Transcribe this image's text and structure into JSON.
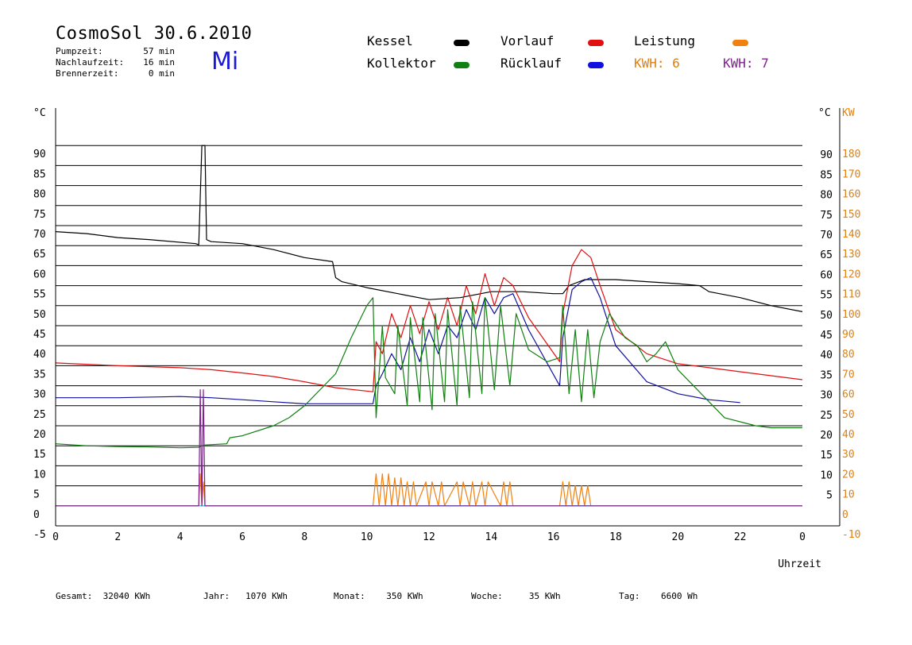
{
  "header": {
    "title": "CosmoSol 30.6.2010",
    "day": "Mi",
    "stats": [
      {
        "label": "Pumpzeit:",
        "value": "57 min"
      },
      {
        "label": "Nachlaufzeit:",
        "value": "16 min"
      },
      {
        "label": "Brennerzeit:",
        "value": "0 min"
      }
    ]
  },
  "legend": {
    "items": [
      {
        "label": "Kessel",
        "color": "#000000"
      },
      {
        "label": "Vorlauf",
        "color": "#e01010"
      },
      {
        "label": "Leistung",
        "color": "#f08010"
      },
      {
        "label": "Kollektor",
        "color": "#108010"
      },
      {
        "label": "Rücklauf",
        "color": "#1010e0"
      }
    ],
    "kwh": [
      {
        "label": "KWH: 6",
        "color": "#e08010"
      },
      {
        "label": "KWH: 7",
        "color": "#802090"
      }
    ]
  },
  "footer": [
    {
      "label": "Gesamt:",
      "value": "32040 KWh"
    },
    {
      "label": "Jahr:",
      "value": "1070 KWh"
    },
    {
      "label": "Monat:",
      "value": "350 KWh"
    },
    {
      "label": "Woche:",
      "value": "35 KWh"
    },
    {
      "label": "Tag:",
      "value": "6600 Wh"
    }
  ],
  "chart_data": {
    "type": "line",
    "x_unit_label": "Uhrzeit",
    "x_ticks": [
      "0",
      "2",
      "4",
      "6",
      "8",
      "10",
      "12",
      "14",
      "16",
      "18",
      "20",
      "22",
      "0"
    ],
    "xlim": [
      0,
      24
    ],
    "y_left_unit": "°C",
    "y_left_ticks": [
      "90",
      "85",
      "80",
      "75",
      "70",
      "65",
      "60",
      "55",
      "50",
      "45",
      "40",
      "35",
      "30",
      "25",
      "20",
      "15",
      "10",
      "5",
      "0",
      "-5"
    ],
    "y_right_unit": "°C",
    "y_right_ticks": [
      "90",
      "85",
      "80",
      "75",
      "70",
      "65",
      "60",
      "55",
      "50",
      "45",
      "40",
      "35",
      "30",
      "25",
      "20",
      "15",
      "10",
      "5"
    ],
    "y2_unit": "KW",
    "y2_ticks": [
      "180",
      "170",
      "160",
      "150",
      "140",
      "130",
      "120",
      "110",
      "100",
      "90",
      "80",
      "70",
      "60",
      "50",
      "40",
      "30",
      "20",
      "10",
      "0",
      "-10"
    ],
    "ylim": [
      -5,
      95
    ],
    "y2lim": [
      -10,
      190
    ],
    "grid": true,
    "series": [
      {
        "name": "Kessel",
        "color": "#000000",
        "x": [
          0,
          1,
          2,
          3,
          4.5,
          4.6,
          4.7,
          4.75,
          4.8,
          4.85,
          4.9,
          5,
          6,
          7,
          8,
          8.9,
          9.0,
          9.2,
          10,
          11,
          12,
          13,
          14,
          15,
          16,
          16.3,
          16.5,
          17,
          18,
          19,
          20,
          20.7,
          21,
          22,
          23,
          24
        ],
        "y": [
          68.5,
          68,
          67,
          66.5,
          65.5,
          65.2,
          90,
          90,
          90,
          66.5,
          66.3,
          66,
          65.5,
          64,
          62,
          61,
          57,
          56,
          54.5,
          53,
          51.5,
          52,
          53.5,
          53.5,
          53,
          53,
          55,
          56.5,
          56.5,
          56,
          55.5,
          55,
          53.5,
          52,
          50,
          48.5
        ]
      },
      {
        "name": "Vorlauf",
        "color": "#e01010",
        "x": [
          0,
          2,
          4,
          5,
          6,
          7,
          8,
          9,
          10.2,
          10.3,
          10.5,
          10.8,
          11.1,
          11.4,
          11.7,
          12,
          12.3,
          12.6,
          12.9,
          13.2,
          13.5,
          13.8,
          14.1,
          14.4,
          14.7,
          15.2,
          16.2,
          16.3,
          16.6,
          16.9,
          17.2,
          17.5,
          18,
          19,
          20,
          21,
          22,
          23,
          24
        ],
        "y": [
          35.7,
          35,
          34.5,
          34,
          33.2,
          32.3,
          31,
          29.5,
          28.5,
          41,
          38,
          48,
          42,
          50,
          43,
          51,
          44,
          52,
          45,
          55,
          48,
          58,
          50,
          57,
          55,
          47,
          36,
          48,
          60,
          64,
          62,
          55,
          44,
          38,
          35.5,
          34.5,
          33.5,
          32.5,
          31.5
        ]
      },
      {
        "name": "Rücklauf",
        "color": "#1010a0",
        "x": [
          0,
          2,
          4,
          5,
          6,
          7,
          8,
          9,
          10.2,
          10.3,
          10.5,
          10.8,
          11.1,
          11.4,
          11.7,
          12,
          12.3,
          12.6,
          12.9,
          13.2,
          13.5,
          13.8,
          14.1,
          14.4,
          14.7,
          15.2,
          16.2,
          16.3,
          16.6,
          16.9,
          17.2,
          17.5,
          18,
          19,
          20,
          21,
          22
        ],
        "y": [
          27,
          27,
          27.3,
          27,
          26.5,
          26,
          25.5,
          25.5,
          25.5,
          30,
          33,
          38,
          34,
          42,
          36,
          44,
          38,
          45,
          42,
          49,
          44,
          52,
          48,
          52,
          53,
          44,
          30,
          42,
          54,
          56,
          57,
          52,
          40,
          31,
          28,
          26.5,
          25.8
        ]
      },
      {
        "name": "Kollektor",
        "color": "#108010",
        "x": [
          0,
          1,
          2,
          3,
          4,
          4.6,
          4.7,
          4.8,
          5.5,
          5.6,
          6,
          7,
          7.5,
          8,
          9,
          9.5,
          10,
          10.2,
          10.3,
          10.5,
          10.6,
          10.9,
          11.0,
          11.3,
          11.4,
          11.7,
          11.8,
          12.1,
          12.2,
          12.5,
          12.6,
          12.9,
          13.0,
          13.3,
          13.4,
          13.7,
          13.8,
          14.1,
          14.3,
          14.6,
          14.8,
          15.2,
          15.8,
          16.2,
          16.3,
          16.5,
          16.7,
          16.9,
          17.1,
          17.3,
          17.5,
          17.8,
          18.3,
          18.7,
          19.0,
          19.3,
          19.6,
          20.0,
          20.5,
          21,
          21.5,
          22,
          22.5,
          23,
          24
        ],
        "y": [
          15.5,
          15,
          14.8,
          14.7,
          14.5,
          14.6,
          15,
          15.2,
          15.5,
          17,
          17.5,
          20,
          22,
          25,
          33,
          42,
          50,
          52,
          22,
          45,
          32,
          28,
          45,
          25,
          47,
          26,
          47,
          24,
          48,
          26,
          49,
          25,
          50,
          27,
          51,
          28,
          52,
          29,
          50,
          30,
          48,
          39,
          36,
          37,
          50,
          28,
          44,
          26,
          44,
          27,
          41,
          48,
          42,
          40,
          36,
          38,
          41,
          34,
          30,
          26,
          22,
          21,
          20,
          19.5,
          19.5
        ]
      },
      {
        "name": "Leistung",
        "color": "#f08010",
        "x": [
          0,
          4.6,
          4.65,
          4.7,
          4.75,
          4.8,
          10.2,
          10.3,
          10.4,
          10.5,
          10.6,
          10.7,
          10.8,
          10.9,
          11.0,
          11.1,
          11.2,
          11.3,
          11.4,
          11.5,
          11.6,
          11.9,
          12.0,
          12.1,
          12.3,
          12.4,
          12.5,
          12.9,
          13.0,
          13.1,
          13.3,
          13.4,
          13.5,
          13.7,
          13.8,
          13.9,
          14.3,
          14.4,
          14.5,
          14.6,
          14.7,
          16.2,
          16.3,
          16.4,
          16.5,
          16.6,
          16.7,
          16.8,
          16.9,
          17.0,
          17.1,
          17.2,
          17.3,
          24
        ],
        "y": [
          0,
          0,
          8,
          0,
          6,
          0,
          0,
          8,
          0,
          8,
          0,
          8,
          0,
          7,
          0,
          7,
          0,
          6,
          0,
          6,
          0,
          6,
          0,
          6,
          0,
          6,
          0,
          6,
          0,
          6,
          0,
          6,
          0,
          6,
          0,
          6,
          0,
          6,
          0,
          6,
          0,
          0,
          6,
          0,
          6,
          0,
          5,
          0,
          5,
          0,
          5,
          0,
          0,
          0
        ]
      },
      {
        "name": "KWH: 7",
        "color": "#802090",
        "x": [
          0,
          4.6,
          4.65,
          4.7,
          4.75,
          4.8,
          24
        ],
        "y": [
          0,
          0,
          29,
          0,
          29,
          0,
          0
        ]
      }
    ]
  }
}
